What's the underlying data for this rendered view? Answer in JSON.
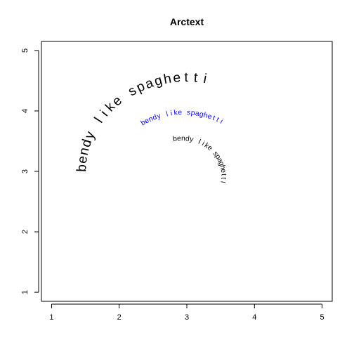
{
  "chart_data": {
    "type": "scatter",
    "title": "Arctext",
    "xlabel": "",
    "ylabel": "",
    "xlim": [
      0.85,
      5.15
    ],
    "ylim": [
      0.85,
      5.15
    ],
    "x_ticks": [
      1,
      2,
      3,
      4,
      5
    ],
    "y_ticks": [
      1,
      2,
      3,
      4,
      5
    ],
    "x_tick_labels": [
      "1",
      "2",
      "3",
      "4",
      "5"
    ],
    "y_tick_labels": [
      "1",
      "2",
      "3",
      "4",
      "5"
    ],
    "grid": false,
    "annotations": [
      {
        "text": "bendy like spaghetti",
        "center": [
          3,
          3
        ],
        "radius": 1.55,
        "start_angle_deg": 178,
        "end_angle_deg": 80,
        "cex": 1.6,
        "color": "#000000"
      },
      {
        "text": "bendy like spaghetti",
        "center": [
          2.95,
          2.85
        ],
        "radius": 1.12,
        "start_angle_deg": 122,
        "end_angle_deg": 60,
        "cex": 0.85,
        "color": "#0000ff"
      },
      {
        "text": "bendy like spaghetti",
        "center": [
          2.93,
          2.93
        ],
        "radius": 0.61,
        "start_angle_deg": 100,
        "end_angle_deg": -10,
        "cex": 0.85,
        "color": "#000000",
        "spread": true
      }
    ]
  }
}
